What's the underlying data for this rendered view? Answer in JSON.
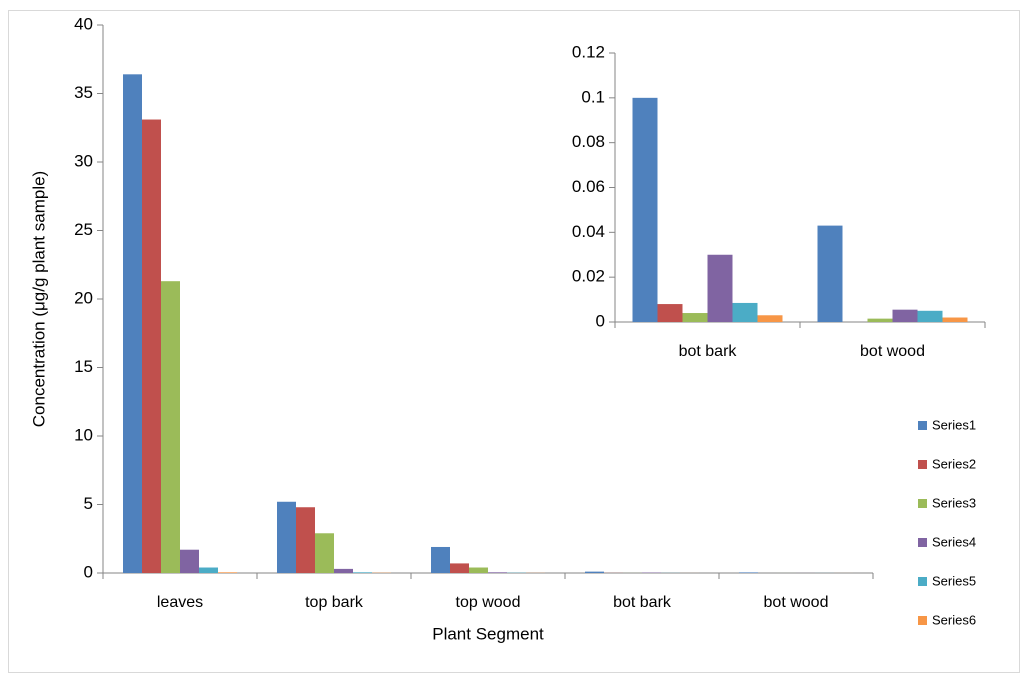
{
  "chart_data": [
    {
      "type": "bar",
      "x_label": "Plant Segment",
      "y_label": "Concentration (μg/g plant sample)",
      "categories": [
        "leaves",
        "top bark",
        "top wood",
        "bot bark",
        "bot wood"
      ],
      "ylim": [
        0,
        40
      ],
      "yticks": [
        0,
        5,
        10,
        15,
        20,
        25,
        30,
        35,
        40
      ],
      "legend": "right",
      "series": [
        {
          "name": "Series1",
          "color": "#4f81bd",
          "values": [
            36.4,
            5.2,
            1.9,
            0.1,
            0.043
          ]
        },
        {
          "name": "Series2",
          "color": "#c0504d",
          "values": [
            33.1,
            4.8,
            0.7,
            0.008,
            0
          ]
        },
        {
          "name": "Series3",
          "color": "#9bbb59",
          "values": [
            21.3,
            2.9,
            0.4,
            0.004,
            0.0015
          ]
        },
        {
          "name": "Series4",
          "color": "#8064a2",
          "values": [
            1.7,
            0.3,
            0.05,
            0.03,
            0.0055
          ]
        },
        {
          "name": "Series5",
          "color": "#4bacc6",
          "values": [
            0.4,
            0.05,
            0.02,
            0.0085,
            0.005
          ]
        },
        {
          "name": "Series6",
          "color": "#f79646",
          "values": [
            0.05,
            0.02,
            0.01,
            0.003,
            0.002
          ]
        }
      ]
    },
    {
      "type": "bar",
      "categories": [
        "bot bark",
        "bot wood"
      ],
      "ylim": [
        0,
        0.12
      ],
      "yticks": [
        0,
        0.02,
        0.04,
        0.06,
        0.08,
        0.1,
        0.12
      ],
      "series": [
        {
          "color": "#4f81bd",
          "values": [
            0.1,
            0.043
          ]
        },
        {
          "color": "#c0504d",
          "values": [
            0.008,
            0
          ]
        },
        {
          "color": "#9bbb59",
          "values": [
            0.004,
            0.0015
          ]
        },
        {
          "color": "#8064a2",
          "values": [
            0.03,
            0.0055
          ]
        },
        {
          "color": "#4bacc6",
          "values": [
            0.0085,
            0.005
          ]
        },
        {
          "color": "#f79646",
          "values": [
            0.003,
            0.002
          ]
        }
      ]
    }
  ]
}
